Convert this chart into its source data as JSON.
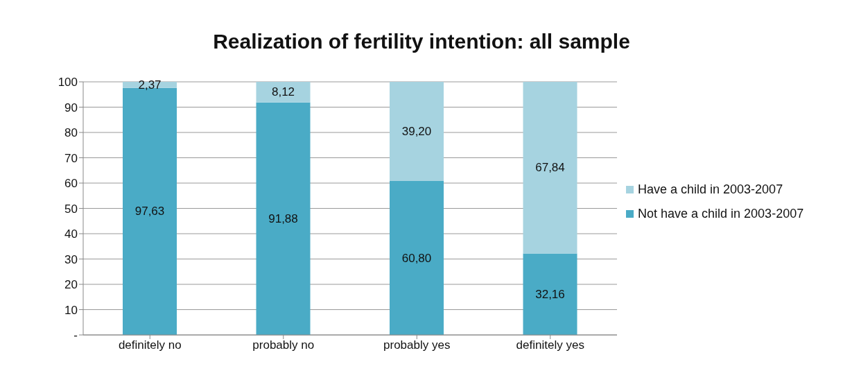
{
  "chart_data": {
    "type": "bar",
    "title": "Realization of fertility intention: all sample",
    "stacked": true,
    "categories": [
      "definitely no",
      "probably no",
      "probably yes",
      "definitely yes"
    ],
    "series": [
      {
        "name": "Not have a child in 2003-2007",
        "color": "#4aabc6",
        "values": [
          97.63,
          91.88,
          60.8,
          32.16
        ],
        "value_labels": [
          "97,63",
          "91,88",
          "60,80",
          "32,16"
        ]
      },
      {
        "name": "Have a child in 2003-2007",
        "color": "#a6d3e0",
        "values": [
          2.37,
          8.12,
          39.2,
          67.84
        ],
        "value_labels": [
          "2,37",
          "8,12",
          "39,20",
          "67,84"
        ]
      }
    ],
    "ylim": [
      0,
      100
    ],
    "yticks": [
      {
        "value": 0,
        "label": "-"
      },
      10,
      20,
      30,
      40,
      50,
      60,
      70,
      80,
      90,
      100
    ],
    "grid": "y",
    "legend": "right"
  }
}
